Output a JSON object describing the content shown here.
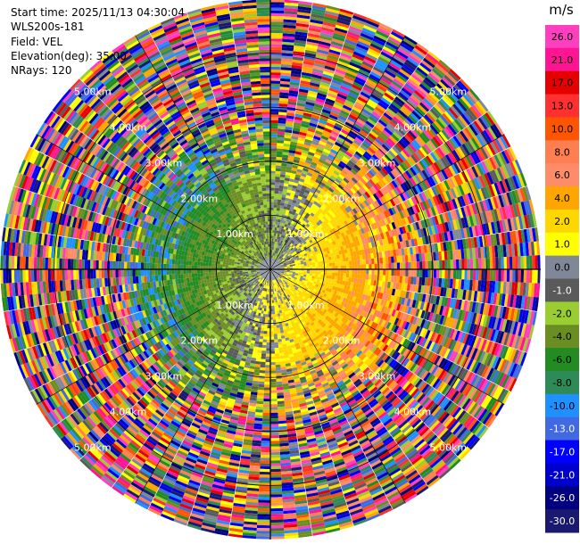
{
  "info": {
    "start_time": "Start time: 2025/11/13 04:30:04",
    "instrument": "WLS200s-181",
    "field": "Field: VEL",
    "elevation": "Elevation(deg): 35.00",
    "nrays": "NRays: 120"
  },
  "chart_data": {
    "type": "heatmap",
    "subtype": "polar-ppi",
    "field": "VEL",
    "nrays": 120,
    "range_max_km": 5.0,
    "range_ring_labels": [
      "1.00km",
      "2.00km",
      "3.00km",
      "4.00km",
      "5.00km"
    ],
    "colorbar": {
      "unit": "m/s",
      "ticks": [
        "26.0",
        "21.0",
        "17.0",
        "13.0",
        "10.0",
        "8.0",
        "6.0",
        "4.0",
        "2.0",
        "1.0",
        "0.0",
        "-1.0",
        "-2.0",
        "-4.0",
        "-6.0",
        "-8.0",
        "-10.0",
        "-13.0",
        "-17.0",
        "-21.0",
        "-26.0",
        "-30.0"
      ],
      "colors": [
        "#ff3fbf",
        "#ff1493",
        "#e60000",
        "#ff3030",
        "#ff5500",
        "#ff7f50",
        "#ff8c69",
        "#ffa500",
        "#ffd700",
        "#ffff00",
        "#808898",
        "#5a5a5a",
        "#9acd32",
        "#6b8e23",
        "#228b22",
        "#2e8b57",
        "#1e90ff",
        "#4169e1",
        "#0000ff",
        "#0000cd",
        "#000080",
        "#191970"
      ]
    }
  }
}
